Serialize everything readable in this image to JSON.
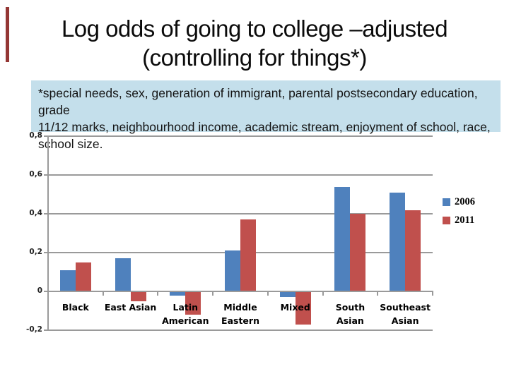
{
  "slide": {
    "accent_color": "#943634",
    "title": {
      "lines": [
        "Log odds of going to college –adjusted",
        "(controlling for things*)"
      ]
    },
    "footnote": {
      "bg_color": "#c4dfeb",
      "lines": [
        "*special needs, sex, generation of immigrant, parental postsecondary education, grade",
        "11/12 marks, neighbourhood income, academic stream, enjoyment of school, race,",
        "school size."
      ]
    }
  },
  "chart_data": {
    "type": "bar",
    "title": "",
    "xlabel": "",
    "ylabel": "",
    "categories": [
      "Black",
      "East Asian",
      "Latin American",
      "Middle Eastern",
      "Mixed",
      "South Asian",
      "Southeast Asian"
    ],
    "category_lines": [
      [
        "Black"
      ],
      [
        "East Asian"
      ],
      [
        "Latin",
        "American"
      ],
      [
        "Middle",
        "Eastern"
      ],
      [
        "Mixed"
      ],
      [
        "South",
        "Asian"
      ],
      [
        "Southeast",
        "Asian"
      ]
    ],
    "series": [
      {
        "name": "2006",
        "color": "#4f81bd",
        "values": [
          0.11,
          0.17,
          -0.02,
          0.21,
          -0.03,
          0.54,
          0.51
        ]
      },
      {
        "name": "2011",
        "color": "#c0504d",
        "values": [
          0.15,
          -0.05,
          -0.12,
          0.37,
          -0.17,
          0.4,
          0.42
        ]
      }
    ],
    "ylim": [
      -0.2,
      0.8
    ],
    "ytick_step": 0.2,
    "yticks": [
      0.8,
      0.6,
      0.4,
      0.2,
      0,
      -0.2
    ],
    "ytick_labels": [
      "0,8",
      "0,6",
      "0,4",
      "0,2",
      "0",
      "-0,2"
    ],
    "grid": true,
    "gridline_color": "#9a9a9a",
    "legend_position": "right",
    "decimal_style": "comma"
  }
}
